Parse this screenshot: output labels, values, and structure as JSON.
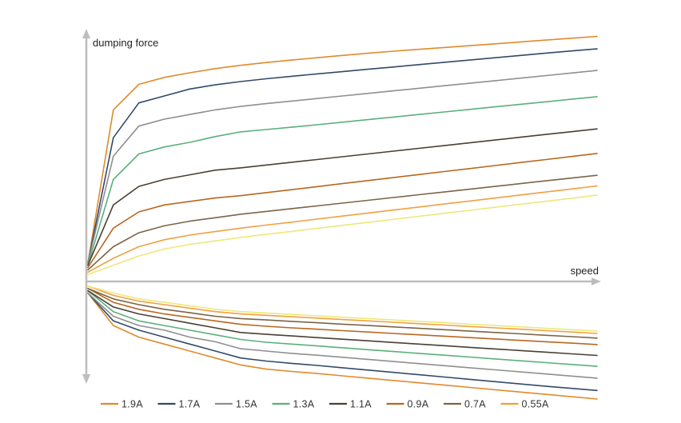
{
  "chart_data": {
    "type": "line",
    "title": "",
    "ylabel": "dumping force",
    "xlabel": "speed",
    "grid": false,
    "legend_position": "bottom",
    "x": [
      0,
      0.05,
      0.1,
      0.15,
      0.2,
      0.25,
      0.3,
      0.35,
      0.4,
      0.45,
      0.5,
      0.55,
      0.6,
      0.65,
      0.7,
      0.75,
      0.8,
      0.85,
      0.9,
      0.95,
      1.0
    ],
    "series": [
      {
        "name": "1.9A",
        "color": "#e08a2c",
        "rebound": [
          0.08,
          0.74,
          0.85,
          0.88,
          0.9,
          0.918,
          0.932,
          0.944,
          0.955,
          0.965,
          0.975,
          0.984,
          0.993,
          1.001,
          1.009,
          1.017,
          1.025,
          1.033,
          1.041,
          1.049,
          1.057
        ],
        "compression": [
          -0.05,
          -0.19,
          -0.24,
          -0.27,
          -0.3,
          -0.33,
          -0.36,
          -0.378,
          -0.388,
          -0.397,
          -0.407,
          -0.417,
          -0.427,
          -0.437,
          -0.447,
          -0.457,
          -0.467,
          -0.477,
          -0.487,
          -0.497,
          -0.507
        ]
      },
      {
        "name": "1.7A",
        "color": "#33496b",
        "rebound": [
          0.08,
          0.62,
          0.77,
          0.8,
          0.83,
          0.848,
          0.862,
          0.874,
          0.885,
          0.895,
          0.905,
          0.915,
          0.925,
          0.935,
          0.945,
          0.955,
          0.965,
          0.975,
          0.985,
          0.994,
          1.003
        ],
        "compression": [
          -0.05,
          -0.17,
          -0.21,
          -0.24,
          -0.27,
          -0.3,
          -0.33,
          -0.343,
          -0.353,
          -0.362,
          -0.372,
          -0.382,
          -0.392,
          -0.402,
          -0.412,
          -0.422,
          -0.432,
          -0.442,
          -0.452,
          -0.461,
          -0.47
        ]
      },
      {
        "name": "1.5A",
        "color": "#8f8f8f",
        "rebound": [
          0.08,
          0.54,
          0.67,
          0.7,
          0.72,
          0.74,
          0.755,
          0.767,
          0.778,
          0.789,
          0.8,
          0.811,
          0.822,
          0.833,
          0.844,
          0.855,
          0.866,
          0.877,
          0.888,
          0.899,
          0.91
        ],
        "compression": [
          -0.05,
          -0.15,
          -0.19,
          -0.21,
          -0.24,
          -0.26,
          -0.29,
          -0.3,
          -0.31,
          -0.318,
          -0.327,
          -0.336,
          -0.345,
          -0.354,
          -0.363,
          -0.372,
          -0.381,
          -0.39,
          -0.399,
          -0.408,
          -0.417
        ]
      },
      {
        "name": "1.3A",
        "color": "#5ab07a",
        "rebound": [
          0.07,
          0.44,
          0.55,
          0.58,
          0.6,
          0.625,
          0.645,
          0.655,
          0.665,
          0.676,
          0.687,
          0.698,
          0.709,
          0.72,
          0.731,
          0.742,
          0.753,
          0.764,
          0.775,
          0.786,
          0.797
        ],
        "compression": [
          -0.04,
          -0.13,
          -0.17,
          -0.19,
          -0.21,
          -0.23,
          -0.25,
          -0.262,
          -0.27,
          -0.278,
          -0.286,
          -0.294,
          -0.302,
          -0.31,
          -0.318,
          -0.326,
          -0.334,
          -0.342,
          -0.35,
          -0.358,
          -0.366
        ]
      },
      {
        "name": "1.1A",
        "color": "#4a3f33",
        "rebound": [
          0.07,
          0.33,
          0.41,
          0.44,
          0.46,
          0.48,
          0.49,
          0.502,
          0.514,
          0.526,
          0.538,
          0.55,
          0.562,
          0.574,
          0.586,
          0.598,
          0.61,
          0.622,
          0.634,
          0.646,
          0.658
        ],
        "compression": [
          -0.04,
          -0.11,
          -0.14,
          -0.16,
          -0.18,
          -0.2,
          -0.22,
          -0.228,
          -0.235,
          -0.242,
          -0.249,
          -0.256,
          -0.263,
          -0.27,
          -0.277,
          -0.284,
          -0.291,
          -0.298,
          -0.305,
          -0.312,
          -0.319
        ]
      },
      {
        "name": "0.9A",
        "color": "#b8671f",
        "rebound": [
          0.06,
          0.23,
          0.3,
          0.33,
          0.345,
          0.36,
          0.37,
          0.383,
          0.396,
          0.409,
          0.422,
          0.435,
          0.448,
          0.461,
          0.474,
          0.487,
          0.5,
          0.513,
          0.526,
          0.539,
          0.552
        ],
        "compression": [
          -0.03,
          -0.09,
          -0.12,
          -0.14,
          -0.155,
          -0.17,
          -0.185,
          -0.193,
          -0.2,
          -0.206,
          -0.212,
          -0.218,
          -0.224,
          -0.23,
          -0.236,
          -0.242,
          -0.248,
          -0.254,
          -0.26,
          -0.266,
          -0.272
        ]
      },
      {
        "name": "0.7A",
        "color": "#7a6447",
        "rebound": [
          0.05,
          0.15,
          0.21,
          0.24,
          0.26,
          0.275,
          0.29,
          0.302,
          0.314,
          0.326,
          0.338,
          0.35,
          0.362,
          0.374,
          0.386,
          0.398,
          0.41,
          0.422,
          0.434,
          0.446,
          0.458
        ],
        "compression": [
          -0.03,
          -0.075,
          -0.1,
          -0.12,
          -0.135,
          -0.15,
          -0.16,
          -0.166,
          -0.172,
          -0.178,
          -0.184,
          -0.19,
          -0.196,
          -0.202,
          -0.208,
          -0.214,
          -0.22,
          -0.226,
          -0.232,
          -0.238,
          -0.244
        ]
      },
      {
        "name": "0.55A",
        "color": "#f0a040",
        "rebound": [
          0.04,
          0.1,
          0.15,
          0.18,
          0.2,
          0.215,
          0.23,
          0.243,
          0.256,
          0.269,
          0.282,
          0.295,
          0.308,
          0.321,
          0.334,
          0.347,
          0.36,
          0.373,
          0.386,
          0.399,
          0.412
        ],
        "compression": [
          -0.02,
          -0.06,
          -0.085,
          -0.1,
          -0.115,
          -0.13,
          -0.14,
          -0.146,
          -0.152,
          -0.158,
          -0.164,
          -0.17,
          -0.176,
          -0.182,
          -0.188,
          -0.194,
          -0.2,
          -0.206,
          -0.212,
          -0.218,
          -0.224
        ]
      },
      {
        "name": "",
        "color": "#ede87a",
        "rebound": [
          0.03,
          0.07,
          0.11,
          0.14,
          0.16,
          0.175,
          0.19,
          0.203,
          0.216,
          0.229,
          0.242,
          0.255,
          0.268,
          0.281,
          0.294,
          0.307,
          0.32,
          0.333,
          0.346,
          0.359,
          0.372
        ],
        "compression": [
          -0.02,
          -0.05,
          -0.075,
          -0.09,
          -0.105,
          -0.12,
          -0.13,
          -0.136,
          -0.142,
          -0.148,
          -0.154,
          -0.16,
          -0.166,
          -0.172,
          -0.178,
          -0.184,
          -0.19,
          -0.196,
          -0.202,
          -0.208,
          -0.214
        ]
      }
    ]
  }
}
